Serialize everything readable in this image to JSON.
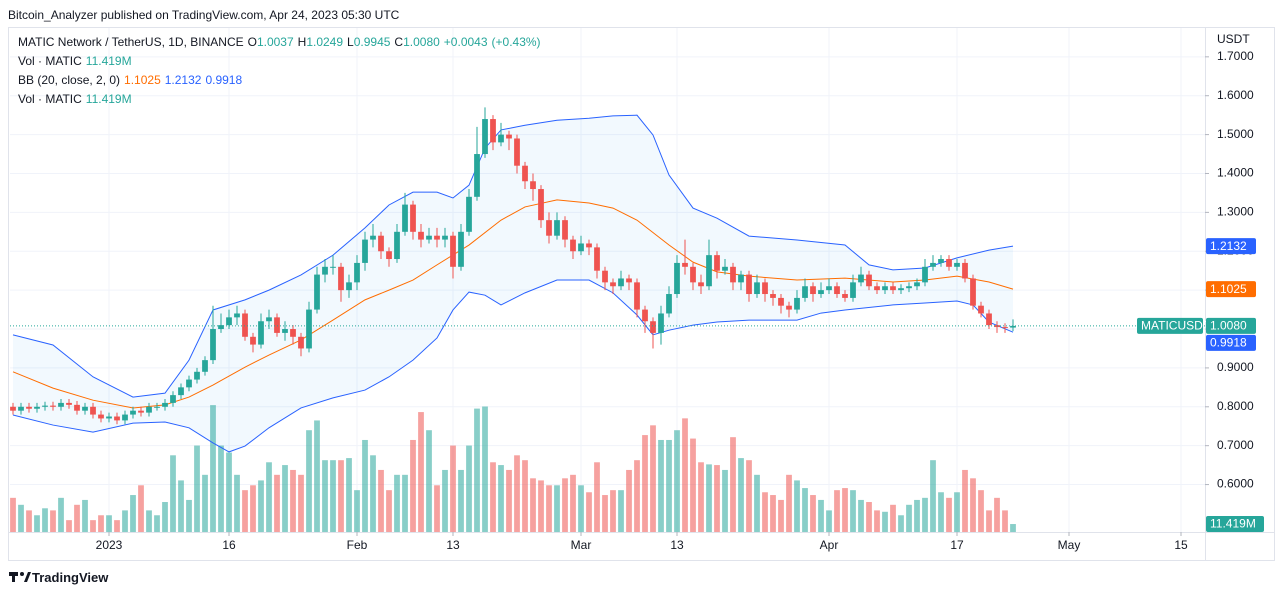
{
  "chart_data": {
    "type": "candlestick",
    "published": "Bitcoin_Analyzer published on TradingView.com, Apr 24, 2023 05:30 UTC",
    "title": "MATIC Network / TetherUS, 1D, BINANCE",
    "ohlc": [
      {
        "key": "O",
        "value": 1.0037
      },
      {
        "key": "H",
        "value": 1.0249
      },
      {
        "key": "L",
        "value": 0.9945
      },
      {
        "key": "C",
        "value": 1.008,
        "value_label": "1.0080"
      }
    ],
    "change": {
      "value": 0.0043,
      "label": "+0.0043"
    },
    "change_pct": {
      "value": 0.43,
      "label": "(+0.43%)"
    },
    "symbol": "MATICUSDT",
    "y_unit": "USDT",
    "brand": "TradingView",
    "up_color": "#26a69a",
    "down_color": "#ef5350",
    "grid": true,
    "ylim": [
      0.478,
      1.769
    ],
    "yticks": [
      {
        "value": 0.6,
        "label": "0.6000"
      },
      {
        "value": 0.7,
        "label": "0.7000"
      },
      {
        "value": 0.8,
        "label": "0.8000"
      },
      {
        "value": 0.9,
        "label": "0.9000"
      },
      {
        "value": 1.0,
        "label": "1.0000"
      },
      {
        "value": 1.1,
        "label": "1.1000"
      },
      {
        "value": 1.2,
        "label": "1.2000"
      },
      {
        "value": 1.3,
        "label": "1.3000"
      },
      {
        "value": 1.4,
        "label": "1.4000"
      },
      {
        "value": 1.5,
        "label": "1.5000"
      },
      {
        "value": 1.6,
        "label": "1.6000"
      },
      {
        "value": 1.7,
        "label": "1.7000"
      }
    ],
    "xlim": [
      -12.375,
      137
    ],
    "xticks": [
      {
        "value": 0,
        "label": "2023"
      },
      {
        "value": 15,
        "label": "16"
      },
      {
        "value": 31,
        "label": "Feb"
      },
      {
        "value": 43,
        "label": "13"
      },
      {
        "value": 59,
        "label": "Mar"
      },
      {
        "value": 71,
        "label": "13"
      },
      {
        "value": 90,
        "label": "Apr"
      },
      {
        "value": 106,
        "label": "17"
      },
      {
        "value": 120,
        "label": "May"
      },
      {
        "value": 134,
        "label": "15"
      }
    ],
    "x": [
      -12,
      -11,
      -10,
      -9,
      -8,
      -7,
      -6,
      -5,
      -4,
      -3,
      -2,
      -1,
      0,
      1,
      2,
      3,
      4,
      5,
      6,
      7,
      8,
      9,
      10,
      11,
      12,
      13,
      14,
      15,
      16,
      17,
      18,
      19,
      20,
      21,
      22,
      23,
      24,
      25,
      26,
      27,
      28,
      29,
      30,
      31,
      32,
      33,
      34,
      35,
      36,
      37,
      38,
      39,
      40,
      41,
      42,
      43,
      44,
      45,
      46,
      47,
      48,
      49,
      50,
      51,
      52,
      53,
      54,
      55,
      56,
      57,
      58,
      59,
      60,
      61,
      62,
      63,
      64,
      65,
      66,
      67,
      68,
      69,
      70,
      71,
      72,
      73,
      74,
      75,
      76,
      77,
      78,
      79,
      80,
      81,
      82,
      83,
      84,
      85,
      86,
      87,
      88,
      89,
      90,
      91,
      92,
      93,
      94,
      95,
      96,
      97,
      98,
      99,
      100,
      101,
      102,
      103,
      104,
      105,
      106,
      107,
      108,
      109,
      110,
      111,
      112,
      113
    ],
    "open": [
      0.8,
      0.79,
      0.8,
      0.795,
      0.8,
      0.803,
      0.8,
      0.81,
      0.805,
      0.79,
      0.8,
      0.78,
      0.77,
      0.775,
      0.765,
      0.78,
      0.79,
      0.785,
      0.8,
      0.8,
      0.81,
      0.83,
      0.85,
      0.87,
      0.89,
      0.92,
      1.0,
      1.01,
      1.03,
      1.04,
      0.98,
      0.96,
      1.02,
      1.03,
      0.99,
      1.0,
      0.98,
      0.95,
      1.05,
      1.14,
      1.16,
      1.16,
      1.1,
      1.12,
      1.17,
      1.23,
      1.24,
      1.2,
      1.18,
      1.25,
      1.32,
      1.25,
      1.23,
      1.24,
      1.23,
      1.24,
      1.16,
      1.25,
      1.34,
      1.45,
      1.54,
      1.48,
      1.5,
      1.49,
      1.42,
      1.38,
      1.36,
      1.28,
      1.24,
      1.28,
      1.23,
      1.2,
      1.22,
      1.21,
      1.15,
      1.12,
      1.11,
      1.13,
      1.12,
      1.05,
      1.02,
      0.99,
      1.04,
      1.09,
      1.17,
      1.16,
      1.12,
      1.11,
      1.19,
      1.15,
      1.16,
      1.12,
      1.14,
      1.09,
      1.12,
      1.09,
      1.08,
      1.06,
      1.05,
      1.08,
      1.11,
      1.09,
      1.1,
      1.11,
      1.09,
      1.08,
      1.12,
      1.14,
      1.11,
      1.1,
      1.11,
      1.1,
      1.105,
      1.11,
      1.12,
      1.16,
      1.17,
      1.18,
      1.16,
      1.17,
      1.13,
      1.06,
      1.04,
      1.01,
      1.005,
      1.0037
    ],
    "high": [
      0.81,
      0.81,
      0.81,
      0.81,
      0.813,
      0.813,
      0.82,
      0.82,
      0.815,
      0.81,
      0.81,
      0.79,
      0.785,
      0.785,
      0.79,
      0.8,
      0.8,
      0.81,
      0.81,
      0.82,
      0.84,
      0.86,
      0.88,
      0.9,
      0.93,
      1.06,
      1.04,
      1.05,
      1.06,
      1.05,
      0.99,
      1.04,
      1.05,
      1.04,
      1.02,
      1.01,
      0.99,
      1.07,
      1.16,
      1.18,
      1.19,
      1.17,
      1.14,
      1.19,
      1.25,
      1.27,
      1.25,
      1.21,
      1.27,
      1.35,
      1.33,
      1.27,
      1.26,
      1.26,
      1.26,
      1.25,
      1.27,
      1.36,
      1.52,
      1.57,
      1.55,
      1.53,
      1.51,
      1.5,
      1.43,
      1.4,
      1.37,
      1.3,
      1.3,
      1.29,
      1.24,
      1.24,
      1.23,
      1.22,
      1.16,
      1.13,
      1.15,
      1.14,
      1.13,
      1.06,
      1.03,
      1.06,
      1.11,
      1.19,
      1.23,
      1.17,
      1.14,
      1.23,
      1.2,
      1.18,
      1.17,
      1.15,
      1.15,
      1.14,
      1.13,
      1.1,
      1.09,
      1.07,
      1.1,
      1.13,
      1.12,
      1.12,
      1.13,
      1.12,
      1.1,
      1.14,
      1.16,
      1.15,
      1.12,
      1.12,
      1.12,
      1.115,
      1.12,
      1.13,
      1.18,
      1.19,
      1.19,
      1.19,
      1.18,
      1.18,
      1.14,
      1.07,
      1.05,
      1.02,
      1.015,
      1.0249
    ],
    "low": [
      0.78,
      0.78,
      0.785,
      0.785,
      0.79,
      0.79,
      0.79,
      0.795,
      0.78,
      0.78,
      0.77,
      0.76,
      0.76,
      0.755,
      0.755,
      0.77,
      0.775,
      0.775,
      0.79,
      0.79,
      0.8,
      0.82,
      0.84,
      0.86,
      0.88,
      0.91,
      0.99,
      1.0,
      1.01,
      0.97,
      0.94,
      0.95,
      1.0,
      0.98,
      0.97,
      0.96,
      0.93,
      0.94,
      1.04,
      1.12,
      1.14,
      1.07,
      1.08,
      1.1,
      1.15,
      1.21,
      1.18,
      1.16,
      1.17,
      1.24,
      1.23,
      1.21,
      1.22,
      1.21,
      1.21,
      1.13,
      1.15,
      1.24,
      1.33,
      1.44,
      1.46,
      1.47,
      1.46,
      1.4,
      1.36,
      1.33,
      1.26,
      1.22,
      1.23,
      1.21,
      1.18,
      1.19,
      1.19,
      1.13,
      1.1,
      1.09,
      1.1,
      1.1,
      1.03,
      0.99,
      0.95,
      0.96,
      1.03,
      1.08,
      1.14,
      1.1,
      1.09,
      1.1,
      1.13,
      1.14,
      1.1,
      1.1,
      1.07,
      1.08,
      1.07,
      1.06,
      1.04,
      1.03,
      1.04,
      1.07,
      1.07,
      1.08,
      1.09,
      1.08,
      1.07,
      1.07,
      1.11,
      1.1,
      1.09,
      1.09,
      1.09,
      1.09,
      1.095,
      1.1,
      1.11,
      1.15,
      1.16,
      1.15,
      1.15,
      1.12,
      1.05,
      1.03,
      1.0,
      0.99,
      0.99,
      0.9945
    ],
    "close": [
      0.79,
      0.8,
      0.795,
      0.8,
      0.803,
      0.8,
      0.81,
      0.805,
      0.79,
      0.8,
      0.78,
      0.77,
      0.775,
      0.765,
      0.78,
      0.79,
      0.785,
      0.8,
      0.8,
      0.81,
      0.83,
      0.85,
      0.87,
      0.89,
      0.92,
      1.0,
      1.01,
      1.03,
      1.04,
      0.98,
      0.96,
      1.02,
      1.03,
      0.99,
      1.0,
      0.98,
      0.95,
      1.05,
      1.14,
      1.16,
      1.16,
      1.1,
      1.12,
      1.17,
      1.23,
      1.24,
      1.2,
      1.18,
      1.25,
      1.32,
      1.25,
      1.23,
      1.24,
      1.23,
      1.24,
      1.16,
      1.25,
      1.34,
      1.45,
      1.54,
      1.48,
      1.5,
      1.49,
      1.42,
      1.38,
      1.36,
      1.28,
      1.24,
      1.28,
      1.23,
      1.2,
      1.22,
      1.21,
      1.15,
      1.12,
      1.11,
      1.13,
      1.12,
      1.05,
      1.02,
      0.99,
      1.04,
      1.09,
      1.17,
      1.16,
      1.12,
      1.11,
      1.19,
      1.15,
      1.16,
      1.12,
      1.14,
      1.09,
      1.12,
      1.09,
      1.08,
      1.06,
      1.05,
      1.08,
      1.11,
      1.09,
      1.1,
      1.11,
      1.09,
      1.08,
      1.12,
      1.14,
      1.11,
      1.1,
      1.11,
      1.1,
      1.105,
      1.11,
      1.12,
      1.16,
      1.17,
      1.18,
      1.16,
      1.17,
      1.13,
      1.06,
      1.04,
      1.01,
      1.005,
      1.0037,
      1.008
    ],
    "volume": {
      "name": "Vol · MATIC",
      "ylim": [
        0,
        720
      ],
      "last_label": "11.419M",
      "values": [
        49,
        39,
        31,
        24,
        34,
        31,
        49,
        17,
        39,
        46,
        17,
        24,
        24,
        17,
        31,
        53,
        67,
        31,
        24,
        43,
        110,
        74,
        46,
        124,
        82,
        182,
        124,
        114,
        82,
        60,
        67,
        74,
        100,
        82,
        96,
        89,
        82,
        146,
        160,
        103,
        103,
        103,
        106,
        60,
        132,
        110,
        89,
        60,
        82,
        82,
        132,
        172,
        146,
        67,
        89,
        124,
        89,
        124,
        177,
        180,
        100,
        96,
        89,
        110,
        103,
        77,
        74,
        67,
        67,
        77,
        82,
        67,
        57,
        100,
        53,
        60,
        60,
        89,
        103,
        139,
        153,
        132,
        132,
        146,
        163,
        134,
        100,
        97,
        96,
        89,
        136,
        106,
        103,
        82,
        57,
        53,
        46,
        82,
        74,
        63,
        53,
        46,
        31,
        60,
        63,
        60,
        46,
        43,
        31,
        29,
        39,
        24,
        39,
        46,
        49,
        103,
        57,
        49,
        57,
        89,
        77,
        60,
        31,
        49,
        31,
        11.419
      ]
    },
    "bb_name": "BB (20, close, 2, 0)",
    "bb": [
      {
        "color": "#ff6d00",
        "x": [
          -12,
          -7,
          -2,
          3,
          7,
          10,
          13,
          17,
          20,
          24,
          28,
          32,
          35,
          38,
          41,
          45,
          49,
          52,
          56,
          60,
          63,
          66,
          70,
          73,
          76,
          80,
          86,
          92,
          98,
          102,
          106,
          110,
          113
        ],
        "values": [
          0.89,
          0.848,
          0.817,
          0.797,
          0.805,
          0.825,
          0.856,
          0.902,
          0.933,
          0.972,
          1.023,
          1.075,
          1.1,
          1.126,
          1.165,
          1.216,
          1.28,
          1.314,
          1.332,
          1.324,
          1.311,
          1.28,
          1.216,
          1.172,
          1.147,
          1.136,
          1.126,
          1.131,
          1.121,
          1.126,
          1.136,
          1.121,
          1.1025
        ]
      },
      {
        "color": "#2962ff",
        "x": [
          -12,
          -7,
          -2,
          3,
          7,
          10,
          13,
          17,
          20,
          24,
          28,
          32,
          35,
          38,
          41,
          43,
          45,
          47,
          49,
          52,
          56,
          60,
          63,
          66,
          68,
          70,
          73,
          76,
          80,
          86,
          92,
          95,
          98,
          102,
          106,
          110,
          113
        ],
        "values": [
          0.985,
          0.959,
          0.877,
          0.825,
          0.835,
          0.92,
          1.049,
          1.075,
          1.1,
          1.139,
          1.19,
          1.26,
          1.319,
          1.352,
          1.352,
          1.337,
          1.37,
          1.465,
          1.512,
          1.524,
          1.537,
          1.542,
          1.548,
          1.55,
          1.499,
          1.396,
          1.311,
          1.285,
          1.239,
          1.229,
          1.216,
          1.165,
          1.152,
          1.157,
          1.183,
          1.203,
          1.2132
        ]
      },
      {
        "color": "#2962ff",
        "x": [
          -12,
          -7,
          -2,
          3,
          7,
          10,
          13,
          15,
          17,
          20,
          24,
          28,
          32,
          35,
          38,
          41,
          43,
          45,
          47,
          49,
          52,
          56,
          60,
          63,
          66,
          68,
          70,
          73,
          76,
          80,
          86,
          89,
          92,
          98,
          102,
          106,
          108,
          110,
          113
        ],
        "values": [
          0.779,
          0.753,
          0.735,
          0.758,
          0.761,
          0.746,
          0.707,
          0.684,
          0.699,
          0.746,
          0.797,
          0.823,
          0.843,
          0.877,
          0.92,
          0.977,
          1.049,
          1.095,
          1.087,
          1.062,
          1.093,
          1.126,
          1.126,
          1.093,
          1.036,
          0.985,
          0.997,
          1.01,
          1.018,
          1.023,
          1.023,
          1.041,
          1.049,
          1.062,
          1.067,
          1.072,
          1.062,
          1.018,
          0.9918
        ]
      }
    ]
  }
}
